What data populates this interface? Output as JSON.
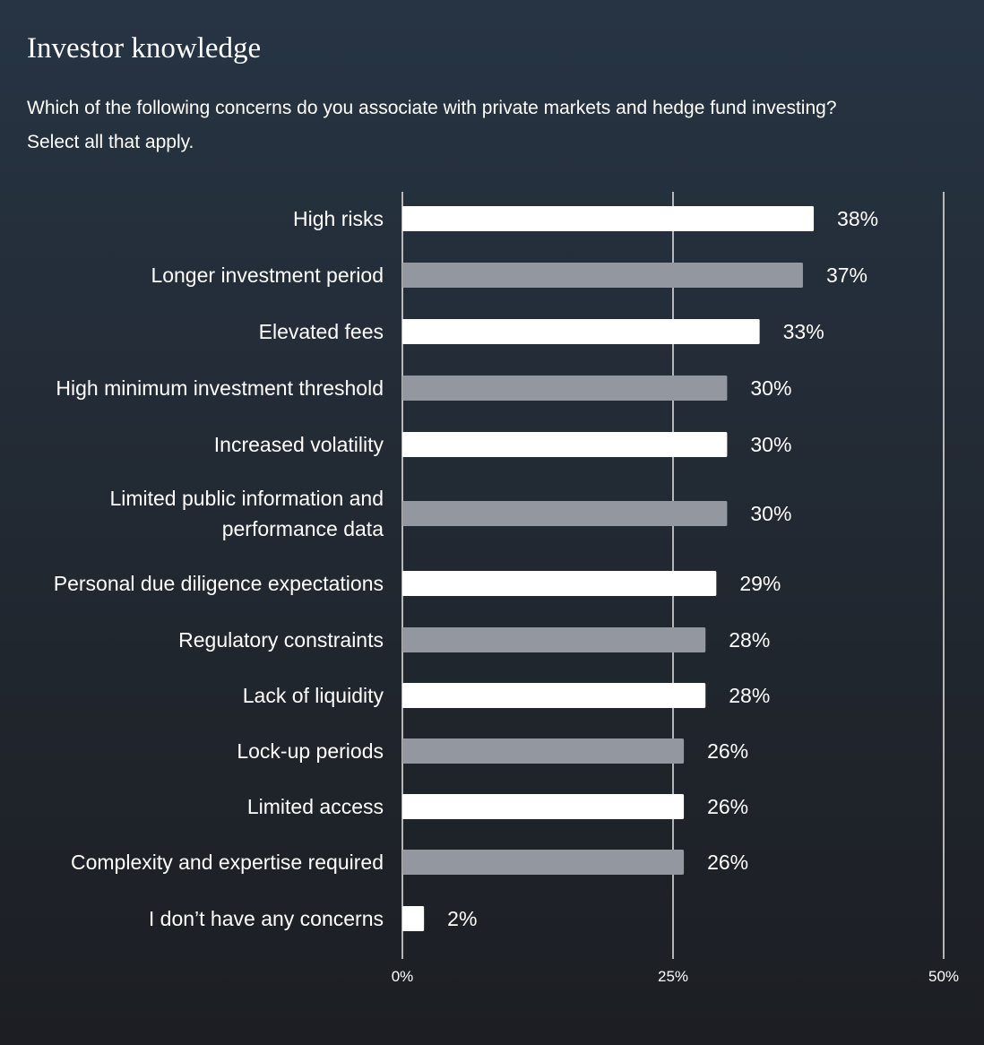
{
  "chart_data": {
    "type": "bar",
    "orientation": "horizontal",
    "title": "Investor knowledge",
    "subtitle_lines": [
      "Which of the following concerns do you associate with private markets and hedge fund investing?",
      "Select all that apply."
    ],
    "categories": [
      [
        "High risks"
      ],
      [
        "Longer investment period"
      ],
      [
        "Elevated fees"
      ],
      [
        "High minimum investment threshold"
      ],
      [
        "Increased volatility"
      ],
      [
        "Limited public information and",
        "performance data"
      ],
      [
        "Personal due diligence expectations"
      ],
      [
        "Regulatory constraints"
      ],
      [
        "Lack of liquidity"
      ],
      [
        "Lock-up periods"
      ],
      [
        "Limited access"
      ],
      [
        "Complexity and expertise required"
      ],
      [
        "I don’t have any concerns"
      ]
    ],
    "values": [
      38,
      37,
      33,
      30,
      30,
      30,
      29,
      28,
      28,
      26,
      26,
      26,
      2
    ],
    "value_labels": [
      "38%",
      "37%",
      "33%",
      "30%",
      "30%",
      "30%",
      "29%",
      "28%",
      "28%",
      "26%",
      "26%",
      "26%",
      "2%"
    ],
    "xlim": [
      0,
      50
    ],
    "x_ticks": [
      0,
      25,
      50
    ],
    "x_tick_labels": [
      "0%",
      "25%",
      "50%"
    ],
    "bar_colors": [
      "#ffffff",
      "#9397a0"
    ],
    "grid": true
  }
}
